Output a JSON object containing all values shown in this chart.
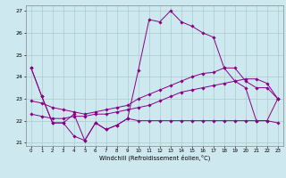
{
  "xlabel": "Windchill (Refroidissement éolien,°C)",
  "background_color": "#cde8ee",
  "grid_color": "#aacccc",
  "line_color": "#880088",
  "hours": [
    0,
    1,
    2,
    3,
    4,
    5,
    6,
    7,
    8,
    9,
    10,
    11,
    12,
    13,
    14,
    15,
    16,
    17,
    18,
    19,
    20,
    21,
    22,
    23
  ],
  "s1": [
    24.4,
    23.1,
    21.9,
    21.9,
    22.3,
    21.1,
    21.9,
    21.6,
    21.8,
    22.1,
    24.3,
    26.6,
    26.5,
    27.0,
    26.5,
    26.3,
    26.0,
    25.8,
    24.4,
    23.8,
    23.5,
    22.0,
    22.0,
    23.0
  ],
  "s2": [
    24.4,
    23.1,
    21.9,
    21.9,
    21.3,
    21.1,
    21.9,
    21.6,
    21.8,
    22.1,
    22.0,
    22.0,
    22.0,
    22.0,
    22.0,
    22.0,
    22.0,
    22.0,
    22.0,
    22.0,
    22.0,
    22.0,
    22.0,
    21.9
  ],
  "s3": [
    22.9,
    22.8,
    22.6,
    22.5,
    22.4,
    22.3,
    22.4,
    22.5,
    22.6,
    22.7,
    23.0,
    23.2,
    23.4,
    23.6,
    23.8,
    24.0,
    24.15,
    24.2,
    24.4,
    24.4,
    23.8,
    23.5,
    23.5,
    23.0
  ],
  "s4": [
    22.3,
    22.2,
    22.1,
    22.1,
    22.2,
    22.2,
    22.3,
    22.3,
    22.4,
    22.5,
    22.6,
    22.7,
    22.9,
    23.1,
    23.3,
    23.4,
    23.5,
    23.6,
    23.7,
    23.8,
    23.9,
    23.9,
    23.7,
    23.0
  ],
  "ylim_min": 20.85,
  "ylim_max": 27.25,
  "yticks": [
    21,
    22,
    23,
    24,
    25,
    26,
    27
  ],
  "xticks": [
    0,
    1,
    2,
    3,
    4,
    5,
    6,
    7,
    8,
    9,
    10,
    11,
    12,
    13,
    14,
    15,
    16,
    17,
    18,
    19,
    20,
    21,
    22,
    23
  ]
}
